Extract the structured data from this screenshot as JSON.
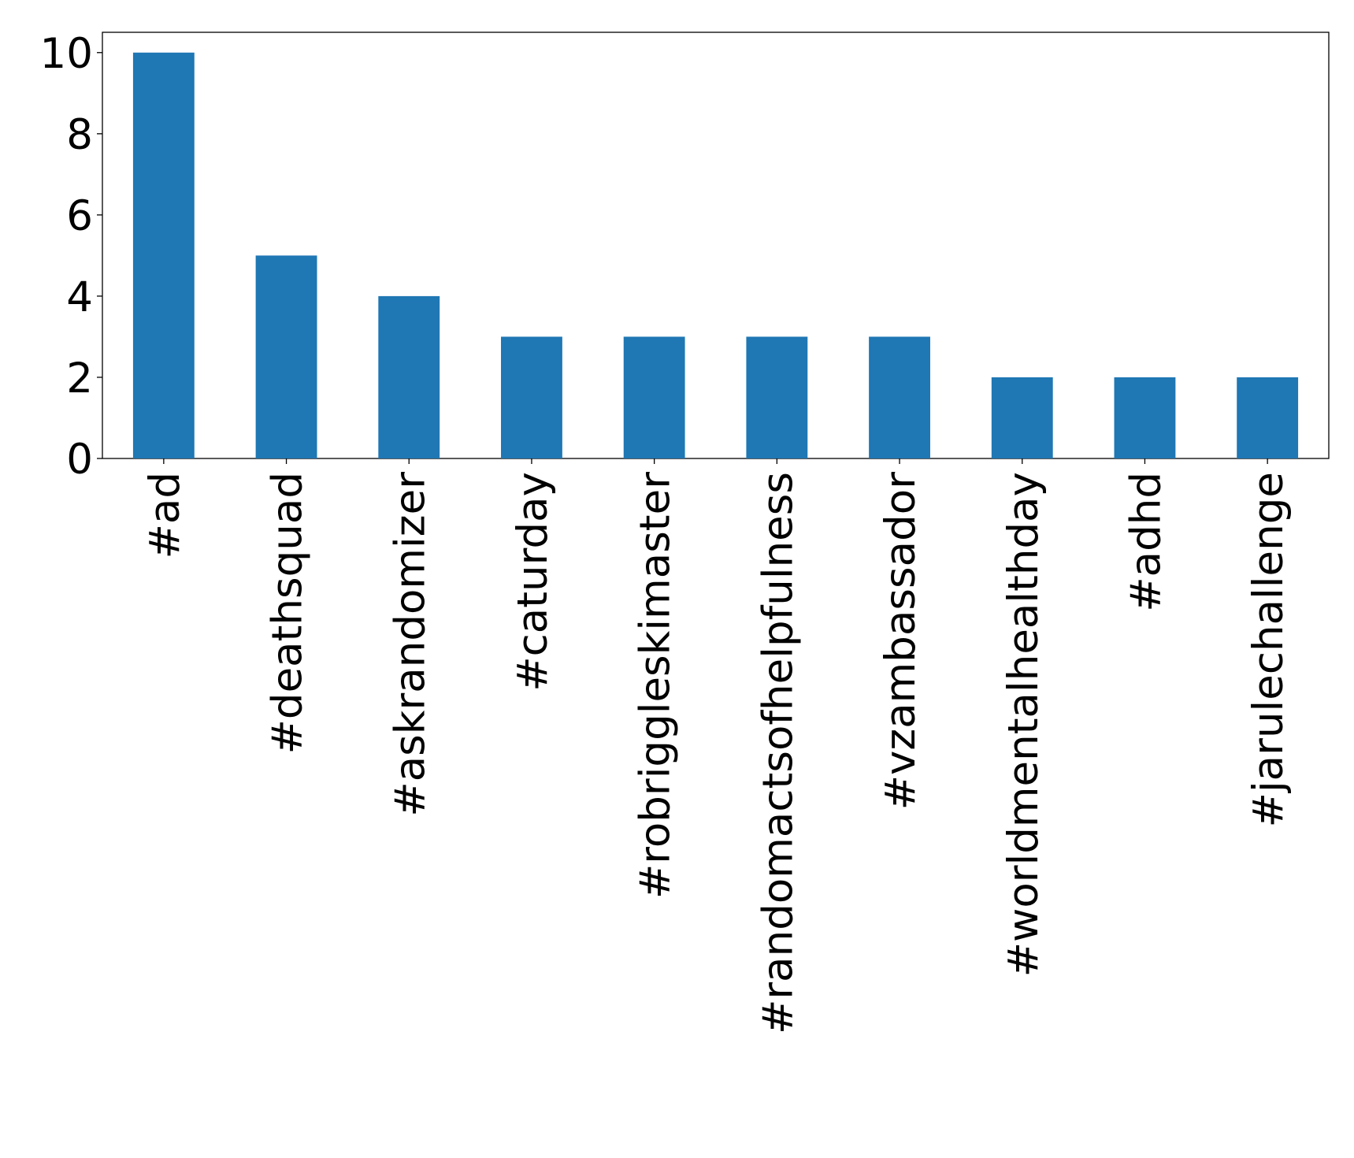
{
  "chart_data": {
    "type": "bar",
    "categories": [
      "#ad",
      "#deathsquad",
      "#askrandomizer",
      "#caturday",
      "#robriggleskimaster",
      "#randomactsofhelpfulness",
      "#vzambassador",
      "#worldmentalhealthday",
      "#adhd",
      "#jarulechallenge"
    ],
    "values": [
      10,
      5,
      4,
      3,
      3,
      3,
      3,
      2,
      2,
      2
    ],
    "color": "#1f77b4",
    "ylim": [
      0,
      10.5
    ],
    "yticks": [
      0,
      2,
      4,
      6,
      8,
      10
    ],
    "grid": false
  }
}
